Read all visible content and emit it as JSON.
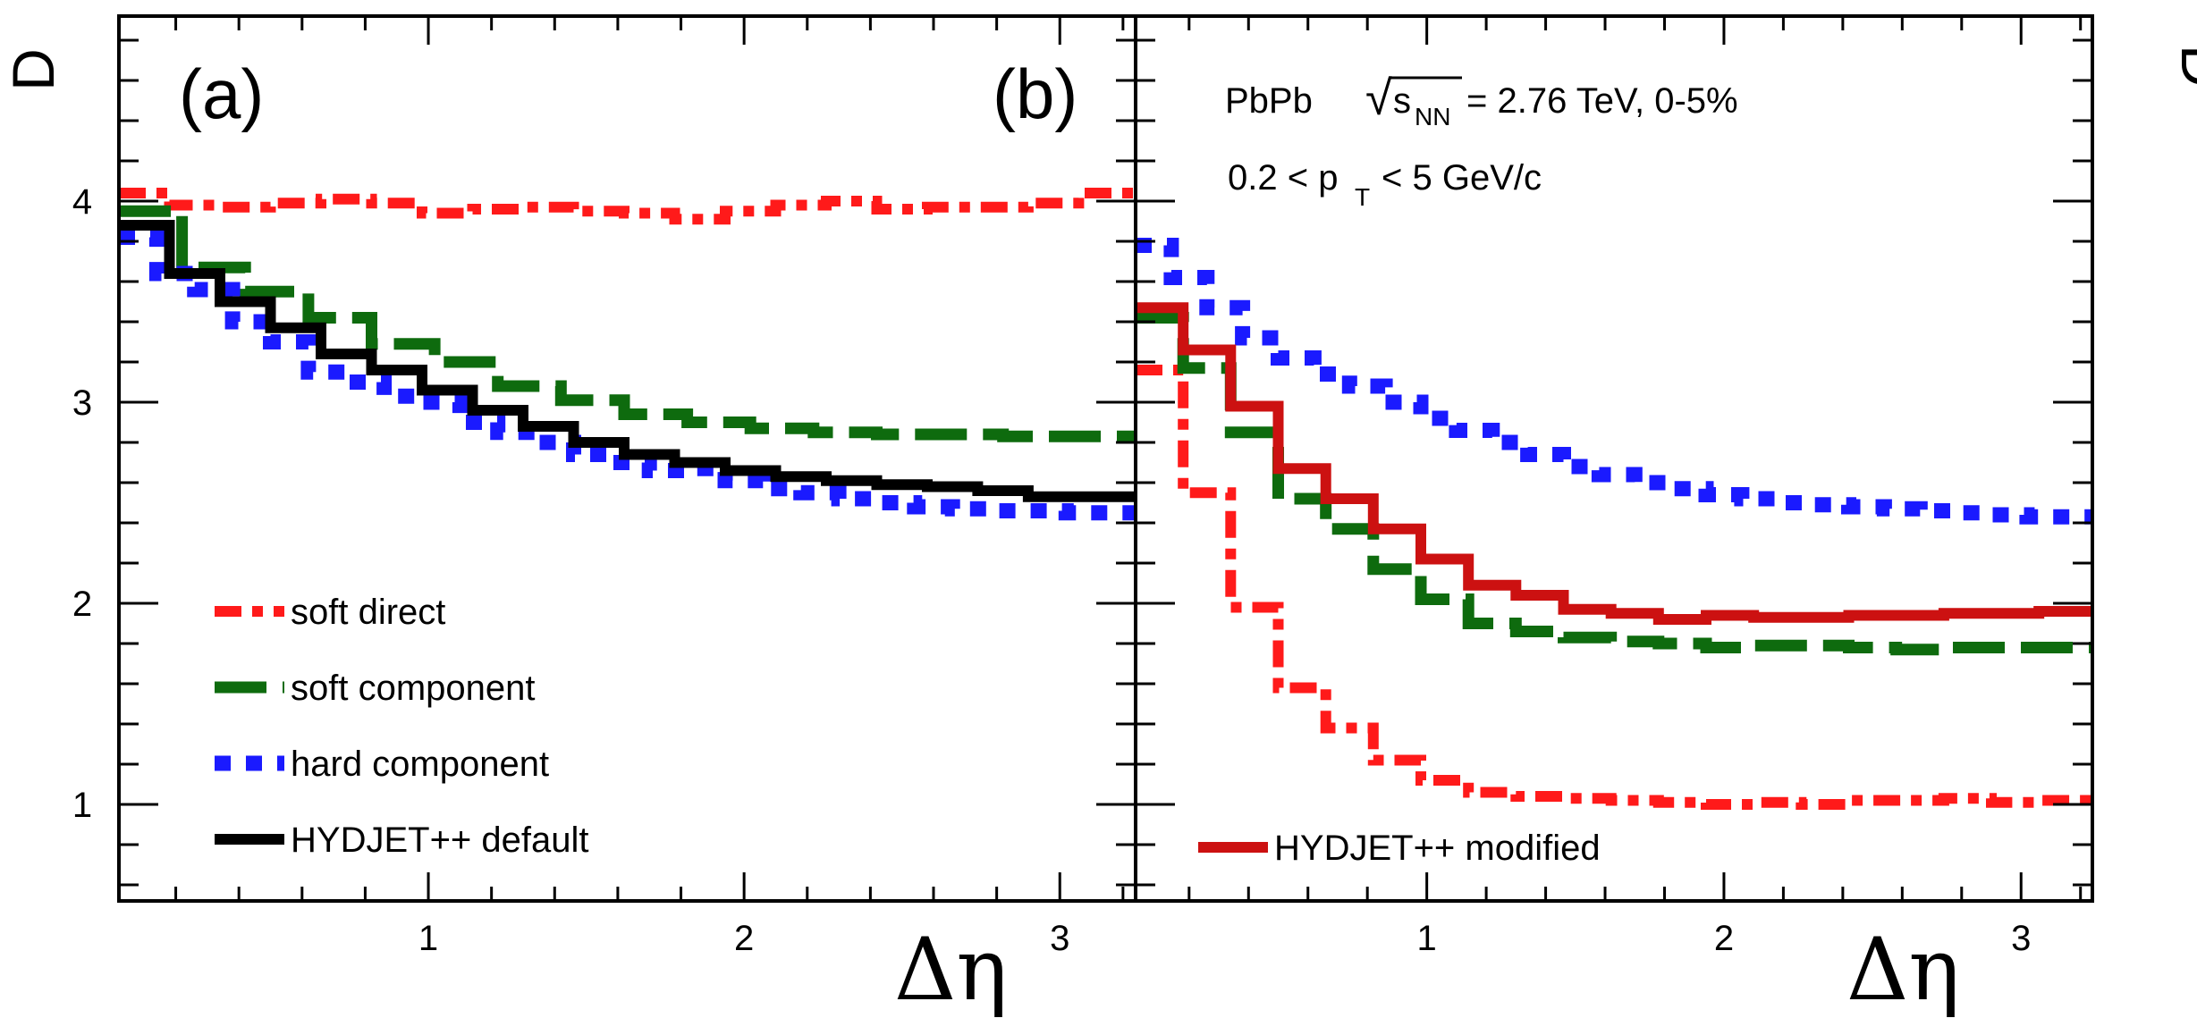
{
  "chart_data": [
    {
      "type": "line",
      "panel_label": "(a)",
      "ylabel": "D",
      "xlabel": "Δη",
      "xlim": [
        0.02,
        3.24
      ],
      "ylim": [
        0.52,
        4.92
      ],
      "xticks": [
        1,
        2,
        3
      ],
      "yticks": [
        1,
        2,
        3,
        4
      ],
      "legend": {
        "placement": "bottom-left",
        "entries": [
          "soft direct",
          "soft component",
          "hard component",
          "HYDJET++ default"
        ]
      },
      "series": [
        {
          "name": "soft direct",
          "color": "#ff1a1a",
          "style": "dash-dot",
          "edges": [
            0.02,
            0.18,
            0.34,
            0.5,
            0.66,
            0.82,
            0.98,
            1.14,
            1.3,
            1.46,
            1.62,
            1.78,
            1.94,
            2.1,
            2.26,
            2.42,
            2.58,
            2.74,
            2.9,
            3.06,
            3.24
          ],
          "values": [
            4.04,
            3.98,
            3.97,
            3.99,
            4.01,
            3.99,
            3.94,
            3.96,
            3.97,
            3.95,
            3.94,
            3.91,
            3.95,
            3.98,
            4.0,
            3.96,
            3.97,
            3.97,
            3.99,
            4.04
          ]
        },
        {
          "name": "soft component",
          "color": "#0e6b0e",
          "style": "dashed",
          "edges": [
            0.02,
            0.22,
            0.42,
            0.62,
            0.82,
            1.02,
            1.22,
            1.42,
            1.62,
            1.82,
            2.02,
            2.22,
            2.42,
            2.62,
            2.82,
            3.02,
            3.24
          ],
          "values": [
            3.95,
            3.67,
            3.55,
            3.42,
            3.29,
            3.2,
            3.08,
            3.01,
            2.94,
            2.9,
            2.87,
            2.85,
            2.84,
            2.84,
            2.83,
            2.83
          ]
        },
        {
          "name": "hard component",
          "color": "#1a1aff",
          "style": "dotted",
          "edges": [
            0.02,
            0.14,
            0.26,
            0.38,
            0.5,
            0.62,
            0.74,
            0.86,
            0.98,
            1.1,
            1.22,
            1.34,
            1.46,
            1.58,
            1.7,
            1.82,
            1.94,
            2.06,
            2.18,
            2.3,
            2.42,
            2.54,
            2.66,
            2.78,
            2.9,
            3.02,
            3.24
          ],
          "values": [
            3.82,
            3.64,
            3.56,
            3.4,
            3.3,
            3.15,
            3.1,
            3.03,
            3.0,
            2.9,
            2.85,
            2.8,
            2.74,
            2.7,
            2.66,
            2.67,
            2.61,
            2.57,
            2.55,
            2.52,
            2.5,
            2.48,
            2.47,
            2.46,
            2.46,
            2.45
          ]
        },
        {
          "name": "HYDJET++ default",
          "color": "#000000",
          "style": "solid",
          "edges": [
            0.02,
            0.18,
            0.34,
            0.5,
            0.66,
            0.82,
            0.98,
            1.14,
            1.3,
            1.46,
            1.62,
            1.78,
            1.94,
            2.1,
            2.26,
            2.42,
            2.58,
            2.74,
            2.9,
            3.06,
            3.24
          ],
          "values": [
            3.88,
            3.64,
            3.5,
            3.37,
            3.24,
            3.16,
            3.06,
            2.96,
            2.88,
            2.8,
            2.74,
            2.7,
            2.66,
            2.63,
            2.61,
            2.59,
            2.58,
            2.56,
            2.53,
            2.53
          ]
        }
      ]
    },
    {
      "type": "line",
      "panel_label": "(b)",
      "ylabel": "D^corr",
      "xlabel": "Δη",
      "xlim": [
        0.02,
        3.24
      ],
      "ylim": [
        0.52,
        4.92
      ],
      "xticks": [
        1,
        2,
        3
      ],
      "yticks": [
        1,
        2,
        3,
        4
      ],
      "annotations": {
        "collision_system": "PbPb",
        "sqrt_symbol": "√",
        "energy_variable": "s",
        "energy_subscript": "NN",
        "energy_value": "= 2.76 TeV, 0-5%",
        "pt_prefix": "0.2 < p",
        "pt_subscript": "T",
        "pt_suffix": "< 5 GeV/c"
      },
      "legend": {
        "placement": "bottom-left",
        "entries": [
          "HYDJET++ modified"
        ]
      },
      "series": [
        {
          "name": "soft direct",
          "color": "#ff1a1a",
          "style": "dash-dot",
          "edges": [
            0.02,
            0.18,
            0.34,
            0.5,
            0.66,
            0.82,
            0.98,
            1.14,
            1.3,
            1.46,
            1.62,
            1.78,
            1.94,
            2.1,
            2.26,
            2.42,
            2.58,
            2.74,
            2.9,
            3.06,
            3.24
          ],
          "values": [
            3.16,
            2.55,
            1.98,
            1.58,
            1.38,
            1.22,
            1.12,
            1.06,
            1.04,
            1.03,
            1.02,
            1.01,
            1.0,
            1.01,
            1.0,
            1.02,
            1.02,
            1.03,
            1.01,
            1.02
          ]
        },
        {
          "name": "soft component",
          "color": "#0e6b0e",
          "style": "dashed",
          "edges": [
            0.02,
            0.18,
            0.34,
            0.5,
            0.66,
            0.82,
            0.98,
            1.14,
            1.3,
            1.46,
            1.62,
            1.78,
            1.94,
            2.1,
            2.26,
            2.42,
            2.58,
            2.74,
            2.9,
            3.06,
            3.24
          ],
          "values": [
            3.42,
            3.17,
            2.85,
            2.52,
            2.37,
            2.17,
            2.02,
            1.9,
            1.86,
            1.83,
            1.81,
            1.8,
            1.78,
            1.79,
            1.79,
            1.78,
            1.77,
            1.78,
            1.78,
            1.78
          ]
        },
        {
          "name": "hard component",
          "color": "#1a1aff",
          "style": "dotted",
          "edges": [
            0.02,
            0.14,
            0.26,
            0.38,
            0.5,
            0.62,
            0.74,
            0.86,
            0.98,
            1.1,
            1.22,
            1.34,
            1.46,
            1.58,
            1.7,
            1.82,
            1.94,
            2.06,
            2.18,
            2.3,
            2.42,
            2.54,
            2.66,
            2.78,
            2.9,
            3.02,
            3.24
          ],
          "values": [
            3.78,
            3.62,
            3.47,
            3.32,
            3.22,
            3.14,
            3.08,
            3.0,
            2.92,
            2.86,
            2.8,
            2.74,
            2.68,
            2.64,
            2.6,
            2.57,
            2.54,
            2.52,
            2.5,
            2.49,
            2.48,
            2.47,
            2.46,
            2.45,
            2.44,
            2.43
          ]
        },
        {
          "name": "HYDJET++ modified",
          "color": "#cc1111",
          "style": "solid",
          "edges": [
            0.02,
            0.18,
            0.34,
            0.5,
            0.66,
            0.82,
            0.98,
            1.14,
            1.3,
            1.46,
            1.62,
            1.78,
            1.94,
            2.1,
            2.26,
            2.42,
            2.58,
            2.74,
            2.9,
            3.06,
            3.24
          ],
          "values": [
            3.47,
            3.26,
            2.98,
            2.67,
            2.52,
            2.37,
            2.22,
            2.09,
            2.04,
            1.97,
            1.95,
            1.92,
            1.94,
            1.93,
            1.93,
            1.94,
            1.94,
            1.95,
            1.95,
            1.96
          ]
        }
      ]
    }
  ]
}
